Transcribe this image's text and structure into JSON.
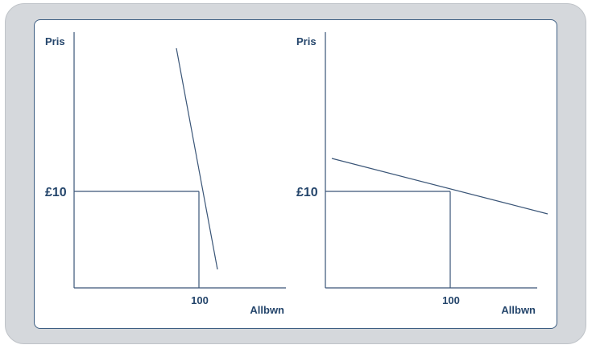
{
  "colors": {
    "frame": "#d5d8dc",
    "panel_border": "#3d5e82",
    "lines": "#3a5577",
    "text": "#24456b"
  },
  "graphs": [
    {
      "y_axis_label": "Pris",
      "x_axis_label": "Allbwn",
      "price_label": "£10",
      "quantity_label": "100",
      "demand_curve": "steep"
    },
    {
      "y_axis_label": "Pris",
      "x_axis_label": "Allbwn",
      "price_label": "£10",
      "quantity_label": "100",
      "demand_curve": "flat"
    }
  ]
}
